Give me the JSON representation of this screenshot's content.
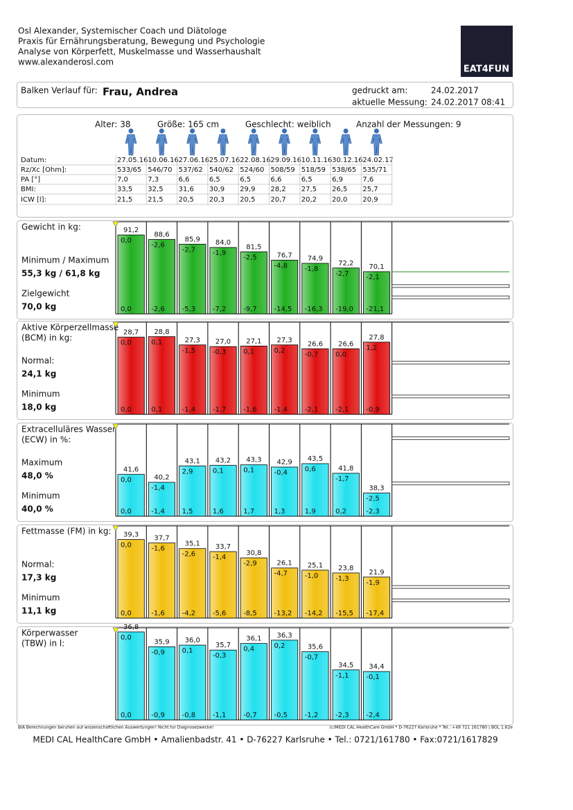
{
  "header": {
    "lines": [
      "Osl Alexander, Systemischer Coach und Diätologe",
      "Praxis für Ernährungsberatung, Bewegung und Psychologie",
      "Analyse von Körperfett, Muskelmasse und Wasserhaushalt",
      "www.alexanderosl.com"
    ],
    "logo": "EAT4FUN"
  },
  "patient": {
    "label": "Balken Verlauf für:",
    "name": "Frau, Andrea",
    "printed_label": "gedruckt am:",
    "printed_value": "24.02.2017",
    "measure_label": "aktuelle Messung:",
    "measure_value": "24.02.2017 08:41"
  },
  "info": {
    "age": "Alter: 38",
    "height": "Größe: 165 cm",
    "sex": "Geschlecht: weiblich",
    "count": "Anzahl der Messungen: 9",
    "table": {
      "rows": [
        {
          "label": "Datum:",
          "values": [
            "27.05.16",
            "10.06.16",
            "27.06.16",
            "25.07.16",
            "22.08.16",
            "29.09.16",
            "10.11.16",
            "30.12.16",
            "24.02.17"
          ]
        },
        {
          "label": "Rz/Xc [Ohm]:",
          "values": [
            "533/65",
            "546/70",
            "537/62",
            "540/62",
            "524/60",
            "508/59",
            "518/59",
            "538/65",
            "535/71"
          ]
        },
        {
          "label": "PA [°]",
          "values": [
            "7,0",
            "7,3",
            "6,6",
            "6,5",
            "6,5",
            "6,6",
            "6,5",
            "6,9",
            "7,6"
          ]
        },
        {
          "label": "BMI:",
          "values": [
            "33,5",
            "32,5",
            "31,6",
            "30,9",
            "29,9",
            "28,2",
            "27,5",
            "26,5",
            "25,7"
          ]
        },
        {
          "label": "ICW [l]:",
          "values": [
            "21,5",
            "21,5",
            "20,5",
            "20,3",
            "20,5",
            "20,7",
            "20,2",
            "20,0",
            "20,9"
          ]
        }
      ]
    }
  },
  "chart_data": [
    {
      "type": "bar",
      "title_lines": [
        "Gewicht in kg:"
      ],
      "color": "#22b022",
      "notes": [
        {
          "label": "Minimum / Maximum",
          "value": "55,3 kg / 61,8 kg"
        },
        {
          "label": "Zielgewicht",
          "value": "70,0 kg"
        }
      ],
      "values": [
        91.2,
        88.6,
        85.9,
        84.0,
        81.5,
        76.7,
        74.9,
        72.2,
        70.1
      ],
      "value_labels": [
        "91,2",
        "88,6",
        "85,9",
        "84,0",
        "81,5",
        "76,7",
        "74,9",
        "72,2",
        "70,1"
      ],
      "changes": [
        "0,0",
        "-2,6",
        "-2,7",
        "-1,9",
        "-2,5",
        "-4,8",
        "-1,8",
        "-2,7",
        "-2,1"
      ],
      "cumulative": [
        "0,0",
        "-2,6",
        "-5,3",
        "-7,2",
        "-9,7",
        "-14,5",
        "-16,3",
        "-19,0",
        "-21,1"
      ],
      "ylim": [
        45.8,
        98.8
      ],
      "ref_lines": [
        61.8,
        55.3
      ],
      "target_line": 70.0
    },
    {
      "type": "bar",
      "title_lines": [
        "Aktive Körperzellmasse",
        "(BCM) in kg:"
      ],
      "color": "#e01010",
      "notes": [
        {
          "label": "Normal:",
          "value": "24,1 kg"
        },
        {
          "label": "Minimum",
          "value": "18,0 kg"
        }
      ],
      "values": [
        28.7,
        28.8,
        27.3,
        27.0,
        27.1,
        27.3,
        26.6,
        26.6,
        27.8
      ],
      "value_labels": [
        "28,7",
        "28,8",
        "27,3",
        "27,0",
        "27,1",
        "27,3",
        "26,6",
        "26,6",
        "27,8"
      ],
      "changes": [
        "0,0",
        "0,1",
        "-1,5",
        "-0,3",
        "0,1",
        "0,2",
        "-0,7",
        "0,0",
        "1,2"
      ],
      "cumulative": [
        "0,0",
        "0,1",
        "-1,4",
        "-1,7",
        "-1,6",
        "-1,4",
        "-2,1",
        "-2,1",
        "-0,9"
      ],
      "ylim": [
        14.75,
        31.4
      ],
      "ref_lines": [
        24.1,
        18.0
      ]
    },
    {
      "type": "bar",
      "title_lines": [
        "Extracelluläres Wasser",
        "(ECW) in %:"
      ],
      "color": "#22e0ee",
      "notes": [
        {
          "label": "Maximum",
          "value": "48,0 %"
        },
        {
          "label": "Minimum",
          "value": "40,0 %"
        }
      ],
      "values": [
        41.6,
        40.2,
        43.1,
        43.2,
        43.3,
        42.9,
        43.5,
        41.8,
        38.3
      ],
      "value_labels": [
        "41,6",
        "40,2",
        "43,1",
        "43,2",
        "43,3",
        "42,9",
        "43,5",
        "41,8",
        "38,3"
      ],
      "changes": [
        "0,0",
        "-1,4",
        "2,9",
        "0,1",
        "0,1",
        "-0,4",
        "0,6",
        "-1,7",
        "-2,5"
      ],
      "cumulative": [
        "0,0",
        "-1,4",
        "1,5",
        "1,6",
        "1,7",
        "1,3",
        "1,9",
        "0,2",
        "-2,3"
      ],
      "ylim": [
        34.2,
        50.5
      ],
      "ref_lines": [
        48.0,
        40.0
      ]
    },
    {
      "type": "bar",
      "title_lines": [
        "Fettmasse (FM) in kg:"
      ],
      "color": "#f2c010",
      "notes": [
        {
          "label": "Normal:",
          "value": "17,3 kg"
        },
        {
          "label": "Minimum",
          "value": "11,1 kg"
        }
      ],
      "values": [
        39.3,
        37.7,
        35.1,
        33.7,
        30.8,
        26.1,
        25.1,
        23.8,
        21.9
      ],
      "value_labels": [
        "39,3",
        "37,7",
        "35,1",
        "33,7",
        "30,8",
        "26,1",
        "25,1",
        "23,8",
        "21,9"
      ],
      "changes": [
        "0,0",
        "-1,6",
        "-2,6",
        "-1,4",
        "-2,9",
        "-4,7",
        "-1,0",
        "-1,3",
        "-1,9"
      ],
      "cumulative": [
        "0,0",
        "-1,6",
        "-4,2",
        "-5,6",
        "-8,5",
        "-13,2",
        "-14,2",
        "-15,5",
        "-17,4"
      ],
      "ylim": [
        2.9,
        45.6
      ],
      "ref_lines": [
        17.3,
        11.1
      ]
    },
    {
      "type": "bar",
      "title_lines": [
        "Körperwasser",
        "(TBW) in l:"
      ],
      "color": "#22e0ee",
      "notes": [],
      "values": [
        36.8,
        35.9,
        36.0,
        35.7,
        36.1,
        36.3,
        35.6,
        34.5,
        34.4
      ],
      "value_labels": [
        "36,8",
        "35,9",
        "36,0",
        "35,7",
        "36,1",
        "36,3",
        "35,6",
        "34,5",
        "34,4"
      ],
      "changes": [
        "0,0",
        "-0,9",
        "0,1",
        "-0,3",
        "0,4",
        "0,2",
        "-0,7",
        "-1,1",
        "-0,1"
      ],
      "cumulative": [
        "0,0",
        "-0,9",
        "-0,8",
        "-1,1",
        "-0,7",
        "-0,5",
        "-1,2",
        "-2,3",
        "-2,4"
      ],
      "ylim": [
        31.47,
        37.05
      ],
      "ref_lines": []
    }
  ],
  "footer": {
    "left_note": "BIA Berechnungen beruhen auf wissenschaftlichen Auswertungen! Nicht für Diagnosezwecke!",
    "right_note": "(c)MEDI CAL HealthCare GmbH * D-76227 Karlsruhe * Tel.: +49 721 161780 | BOL 1.62e",
    "address": "MEDI CAL HealthCare GmbH • Amalienbadstr. 41 • D-76227 Karlsruhe • Tel.: 0721/161780 • Fax:0721/1617829"
  }
}
